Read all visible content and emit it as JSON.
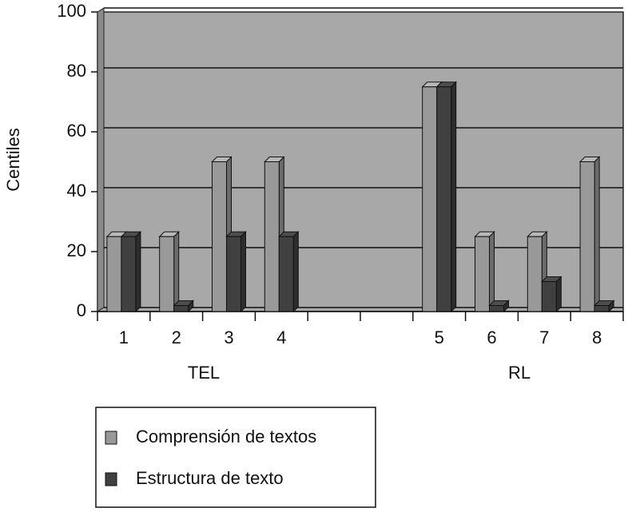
{
  "chart_data": {
    "type": "bar",
    "y_label": "Centiles",
    "categories": [
      "1",
      "2",
      "3",
      "4",
      null,
      null,
      "5",
      "6",
      "7",
      "8"
    ],
    "group_labels": [
      "TEL",
      "RL"
    ],
    "series": [
      {
        "name": "Comprensión de textos",
        "color": "#999999",
        "values": [
          25,
          25,
          50,
          50,
          null,
          null,
          75,
          25,
          25,
          50
        ]
      },
      {
        "name": "Estructura de texto",
        "color": "#404040",
        "values": [
          25,
          2,
          25,
          25,
          null,
          null,
          75,
          2,
          10,
          2
        ]
      }
    ],
    "ylim": [
      0,
      100
    ],
    "yticks": [
      0,
      20,
      40,
      60,
      80,
      100
    ],
    "grid": true
  }
}
